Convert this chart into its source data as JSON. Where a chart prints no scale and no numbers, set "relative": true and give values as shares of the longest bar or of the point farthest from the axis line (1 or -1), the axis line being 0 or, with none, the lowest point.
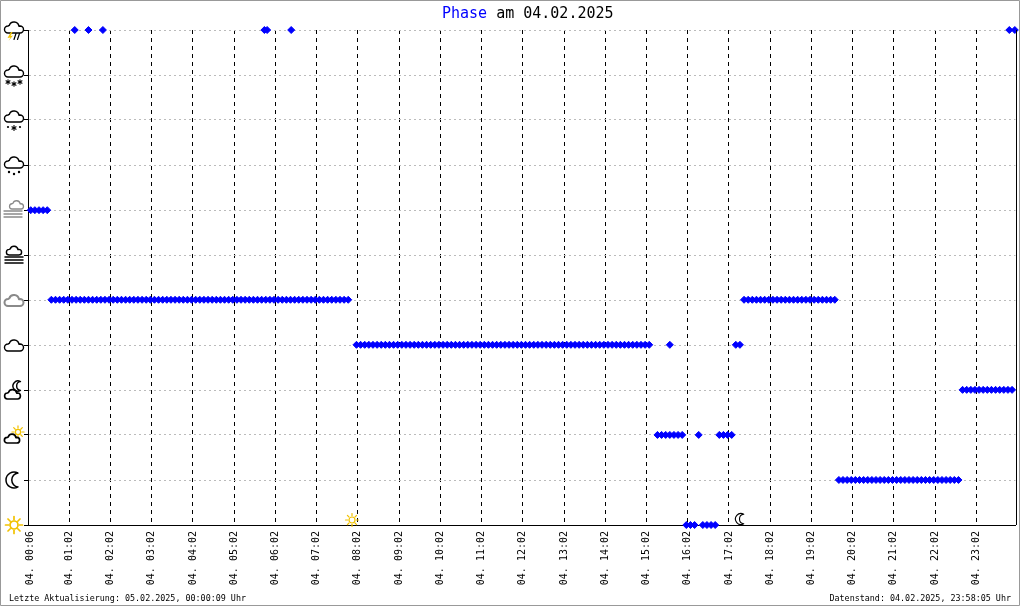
{
  "chart_data": {
    "type": "scatter",
    "title": "Phase am 04.02.2025",
    "annotations": [
      "Letzte Aktualisierung: 05.02.2025, 00:00:09 Uhr",
      "Datenstand: 04.02.2025, 23:58:05 Uhr"
    ],
    "color": "#0000ff",
    "marker": "diamond",
    "grid": true,
    "relative": true,
    "xlim": [
      "2025-02-04T00:02",
      "2025-02-04T23:59"
    ],
    "xticks": [
      {
        "value": "2025-02-04T00:06",
        "label": "04. 00:06"
      },
      {
        "value": "2025-02-04T01:02",
        "label": "04. 01:02"
      },
      {
        "value": "2025-02-04T02:02",
        "label": "04. 02:02"
      },
      {
        "value": "2025-02-04T03:02",
        "label": "04. 03:02"
      },
      {
        "value": "2025-02-04T04:02",
        "label": "04. 04:02"
      },
      {
        "value": "2025-02-04T05:02",
        "label": "04. 05:02"
      },
      {
        "value": "2025-02-04T06:02",
        "label": "04. 06:02"
      },
      {
        "value": "2025-02-04T07:02",
        "label": "04. 07:02"
      },
      {
        "value": "2025-02-04T08:02",
        "label": "04. 08:02"
      },
      {
        "value": "2025-02-04T09:02",
        "label": "04. 09:02"
      },
      {
        "value": "2025-02-04T10:02",
        "label": "04. 10:02"
      },
      {
        "value": "2025-02-04T11:02",
        "label": "04. 11:02"
      },
      {
        "value": "2025-02-04T12:02",
        "label": "04. 12:02"
      },
      {
        "value": "2025-02-04T13:02",
        "label": "04. 13:02"
      },
      {
        "value": "2025-02-04T14:02",
        "label": "04. 14:02"
      },
      {
        "value": "2025-02-04T15:02",
        "label": "04. 15:02"
      },
      {
        "value": "2025-02-04T16:02",
        "label": "04. 16:02"
      },
      {
        "value": "2025-02-04T17:02",
        "label": "04. 17:02"
      },
      {
        "value": "2025-02-04T18:02",
        "label": "04. 18:02"
      },
      {
        "value": "2025-02-04T19:02",
        "label": "04. 19:02"
      },
      {
        "value": "2025-02-04T20:02",
        "label": "04. 20:02"
      },
      {
        "value": "2025-02-04T21:02",
        "label": "04. 21:02"
      },
      {
        "value": "2025-02-04T22:02",
        "label": "04. 22:02"
      },
      {
        "value": "2025-02-04T23:02",
        "label": "04. 23:02"
      }
    ],
    "x": [
      "2025-02-04T00:06",
      "2025-02-04T00:12",
      "2025-02-04T00:18",
      "2025-02-04T00:24",
      "2025-02-04T00:30",
      "2025-02-04T00:36",
      "2025-02-04T00:42",
      "2025-02-04T00:48",
      "2025-02-04T00:54",
      "2025-02-04T01:00",
      "2025-02-04T01:06",
      "2025-02-04T01:10",
      "2025-02-04T01:12",
      "2025-02-04T01:18",
      "2025-02-04T01:24",
      "2025-02-04T01:30",
      "2025-02-04T01:30",
      "2025-02-04T01:36",
      "2025-02-04T01:42",
      "2025-02-04T01:48",
      "2025-02-04T01:51",
      "2025-02-04T01:54",
      "2025-02-04T02:00",
      "2025-02-04T02:06",
      "2025-02-04T02:12",
      "2025-02-04T02:18",
      "2025-02-04T02:24",
      "2025-02-04T02:30",
      "2025-02-04T02:36",
      "2025-02-04T02:42",
      "2025-02-04T02:48",
      "2025-02-04T02:54",
      "2025-02-04T03:00",
      "2025-02-04T03:06",
      "2025-02-04T03:12",
      "2025-02-04T03:18",
      "2025-02-04T03:24",
      "2025-02-04T03:30",
      "2025-02-04T03:36",
      "2025-02-04T03:42",
      "2025-02-04T03:48",
      "2025-02-04T03:54",
      "2025-02-04T04:00",
      "2025-02-04T04:06",
      "2025-02-04T04:12",
      "2025-02-04T04:18",
      "2025-02-04T04:24",
      "2025-02-04T04:30",
      "2025-02-04T04:36",
      "2025-02-04T04:42",
      "2025-02-04T04:48",
      "2025-02-04T04:54",
      "2025-02-04T05:00",
      "2025-02-04T05:06",
      "2025-02-04T05:12",
      "2025-02-04T05:18",
      "2025-02-04T05:24",
      "2025-02-04T05:30",
      "2025-02-04T05:36",
      "2025-02-04T05:42",
      "2025-02-04T05:46",
      "2025-02-04T05:48",
      "2025-02-04T05:50",
      "2025-02-04T05:54",
      "2025-02-04T06:00",
      "2025-02-04T06:06",
      "2025-02-04T06:12",
      "2025-02-04T06:18",
      "2025-02-04T06:24",
      "2025-02-04T06:25",
      "2025-02-04T06:30",
      "2025-02-04T06:36",
      "2025-02-04T06:42",
      "2025-02-04T06:48",
      "2025-02-04T06:54",
      "2025-02-04T07:00",
      "2025-02-04T07:06",
      "2025-02-04T07:12",
      "2025-02-04T07:18",
      "2025-02-04T07:24",
      "2025-02-04T07:30",
      "2025-02-04T07:36",
      "2025-02-04T07:42",
      "2025-02-04T07:48",
      "2025-02-04T08:00",
      "2025-02-04T08:06",
      "2025-02-04T08:12",
      "2025-02-04T08:18",
      "2025-02-04T08:24",
      "2025-02-04T08:30",
      "2025-02-04T08:36",
      "2025-02-04T08:42",
      "2025-02-04T08:48",
      "2025-02-04T08:54",
      "2025-02-04T09:00",
      "2025-02-04T09:06",
      "2025-02-04T09:12",
      "2025-02-04T09:18",
      "2025-02-04T09:24",
      "2025-02-04T09:30",
      "2025-02-04T09:36",
      "2025-02-04T09:42",
      "2025-02-04T09:48",
      "2025-02-04T09:54",
      "2025-02-04T10:00",
      "2025-02-04T10:06",
      "2025-02-04T10:12",
      "2025-02-04T10:18",
      "2025-02-04T10:24",
      "2025-02-04T10:30",
      "2025-02-04T10:36",
      "2025-02-04T10:42",
      "2025-02-04T10:48",
      "2025-02-04T10:54",
      "2025-02-04T11:00",
      "2025-02-04T11:06",
      "2025-02-04T11:12",
      "2025-02-04T11:18",
      "2025-02-04T11:24",
      "2025-02-04T11:30",
      "2025-02-04T11:36",
      "2025-02-04T11:42",
      "2025-02-04T11:48",
      "2025-02-04T11:54",
      "2025-02-04T12:00",
      "2025-02-04T12:06",
      "2025-02-04T12:12",
      "2025-02-04T12:18",
      "2025-02-04T12:24",
      "2025-02-04T12:30",
      "2025-02-04T12:36",
      "2025-02-04T12:42",
      "2025-02-04T12:48",
      "2025-02-04T12:54",
      "2025-02-04T13:00",
      "2025-02-04T13:06",
      "2025-02-04T13:12",
      "2025-02-04T13:18",
      "2025-02-04T13:24",
      "2025-02-04T13:30",
      "2025-02-04T13:36",
      "2025-02-04T13:42",
      "2025-02-04T13:48",
      "2025-02-04T13:54",
      "2025-02-04T14:00",
      "2025-02-04T14:06",
      "2025-02-04T14:12",
      "2025-02-04T14:18",
      "2025-02-04T14:24",
      "2025-02-04T14:30",
      "2025-02-04T14:36",
      "2025-02-04T14:42",
      "2025-02-04T14:48",
      "2025-02-04T14:54",
      "2025-02-04T15:00",
      "2025-02-04T15:06",
      "2025-02-04T15:18",
      "2025-02-04T15:24",
      "2025-02-04T15:30",
      "2025-02-04T15:36",
      "2025-02-04T15:36",
      "2025-02-04T15:42",
      "2025-02-04T15:48",
      "2025-02-04T15:54",
      "2025-02-04T16:00",
      "2025-02-04T16:06",
      "2025-02-04T16:12",
      "2025-02-04T16:18",
      "2025-02-04T16:24",
      "2025-02-04T16:30",
      "2025-02-04T16:36",
      "2025-02-04T16:42",
      "2025-02-04T16:48",
      "2025-02-04T16:54",
      "2025-02-04T17:00",
      "2025-02-04T17:06",
      "2025-02-04T17:12",
      "2025-02-04T17:18",
      "2025-02-04T17:24",
      "2025-02-04T17:30",
      "2025-02-04T17:36",
      "2025-02-04T17:42",
      "2025-02-04T17:48",
      "2025-02-04T17:54",
      "2025-02-04T18:00",
      "2025-02-04T18:06",
      "2025-02-04T18:12",
      "2025-02-04T18:18",
      "2025-02-04T18:24",
      "2025-02-04T18:30",
      "2025-02-04T18:36",
      "2025-02-04T18:42",
      "2025-02-04T18:48",
      "2025-02-04T18:54",
      "2025-02-04T19:00",
      "2025-02-04T19:06",
      "2025-02-04T19:12",
      "2025-02-04T19:18",
      "2025-02-04T19:24",
      "2025-02-04T19:30",
      "2025-02-04T19:36",
      "2025-02-04T19:42",
      "2025-02-04T19:48",
      "2025-02-04T19:54",
      "2025-02-04T20:00",
      "2025-02-04T20:06",
      "2025-02-04T20:12",
      "2025-02-04T20:18",
      "2025-02-04T20:24",
      "2025-02-04T20:30",
      "2025-02-04T20:36",
      "2025-02-04T20:42",
      "2025-02-04T20:48",
      "2025-02-04T20:54",
      "2025-02-04T21:00",
      "2025-02-04T21:06",
      "2025-02-04T21:12",
      "2025-02-04T21:18",
      "2025-02-04T21:24",
      "2025-02-04T21:30",
      "2025-02-04T21:36",
      "2025-02-04T21:42",
      "2025-02-04T21:48",
      "2025-02-04T21:54",
      "2025-02-04T22:00",
      "2025-02-04T22:06",
      "2025-02-04T22:12",
      "2025-02-04T22:18",
      "2025-02-04T22:24",
      "2025-02-04T22:30",
      "2025-02-04T22:36",
      "2025-02-04T22:42",
      "2025-02-04T22:48",
      "2025-02-04T22:54",
      "2025-02-04T23:00",
      "2025-02-04T23:06",
      "2025-02-04T23:12",
      "2025-02-04T23:18",
      "2025-02-04T23:24",
      "2025-02-04T23:30",
      "2025-02-04T23:36",
      "2025-02-04T23:42",
      "2025-02-04T23:48",
      "2025-02-04T23:50",
      "2025-02-04T23:54",
      "2025-02-04T23:58"
    ],
    "values": [
      0.636,
      0.636,
      0.636,
      0.636,
      0.636,
      0.455,
      0.455,
      0.455,
      0.455,
      0.455,
      0.455,
      1,
      0.455,
      0.455,
      0.455,
      0.455,
      1,
      0.455,
      0.455,
      0.455,
      1,
      0.455,
      0.455,
      0.455,
      0.455,
      0.455,
      0.455,
      0.455,
      0.455,
      0.455,
      0.455,
      0.455,
      0.455,
      0.455,
      0.455,
      0.455,
      0.455,
      0.455,
      0.455,
      0.455,
      0.455,
      0.455,
      0.455,
      0.455,
      0.455,
      0.455,
      0.455,
      0.455,
      0.455,
      0.455,
      0.455,
      0.455,
      0.455,
      0.455,
      0.455,
      0.455,
      0.455,
      0.455,
      0.455,
      0.455,
      1,
      0.455,
      1,
      0.455,
      0.455,
      0.455,
      0.455,
      0.455,
      0.455,
      1,
      0.455,
      0.455,
      0.455,
      0.455,
      0.455,
      0.455,
      0.455,
      0.455,
      0.455,
      0.455,
      0.455,
      0.455,
      0.455,
      0.455,
      0.364,
      0.364,
      0.364,
      0.364,
      0.364,
      0.364,
      0.364,
      0.364,
      0.364,
      0.364,
      0.364,
      0.364,
      0.364,
      0.364,
      0.364,
      0.364,
      0.364,
      0.364,
      0.364,
      0.364,
      0.364,
      0.364,
      0.364,
      0.364,
      0.364,
      0.364,
      0.364,
      0.364,
      0.364,
      0.364,
      0.364,
      0.364,
      0.364,
      0.364,
      0.364,
      0.364,
      0.364,
      0.364,
      0.364,
      0.364,
      0.364,
      0.364,
      0.364,
      0.364,
      0.364,
      0.364,
      0.364,
      0.364,
      0.364,
      0.364,
      0.364,
      0.364,
      0.364,
      0.364,
      0.364,
      0.364,
      0.364,
      0.364,
      0.364,
      0.364,
      0.364,
      0.364,
      0.364,
      0.364,
      0.364,
      0.364,
      0.364,
      0.364,
      0.364,
      0.364,
      0.364,
      0.364,
      0.182,
      0.182,
      0.182,
      0.364,
      0.182,
      0.182,
      0.182,
      0.182,
      0,
      0,
      0,
      0.182,
      0,
      0,
      0,
      0,
      0.182,
      0.182,
      0.182,
      0.182,
      0.364,
      0.364,
      0.455,
      0.455,
      0.455,
      0.455,
      0.455,
      0.455,
      0.455,
      0.455,
      0.455,
      0.455,
      0.455,
      0.455,
      0.455,
      0.455,
      0.455,
      0.455,
      0.455,
      0.455,
      0.455,
      0.455,
      0.455,
      0.455,
      0.455,
      0.091,
      0.091,
      0.091,
      0.091,
      0.091,
      0.091,
      0.091,
      0.091,
      0.091,
      0.091,
      0.091,
      0.091,
      0.091,
      0.091,
      0.091,
      0.091,
      0.091,
      0.091,
      0.091,
      0.091,
      0.091,
      0.091,
      0.091,
      0.091,
      0.091,
      0.091,
      0.091,
      0.091,
      0.091,
      0.091,
      0.273,
      0.273,
      0.273,
      0.273,
      0.273,
      0.273,
      0.273,
      0.273,
      0.273,
      0.273,
      0.273,
      0.273,
      1,
      0.273,
      1
    ]
  }
}
